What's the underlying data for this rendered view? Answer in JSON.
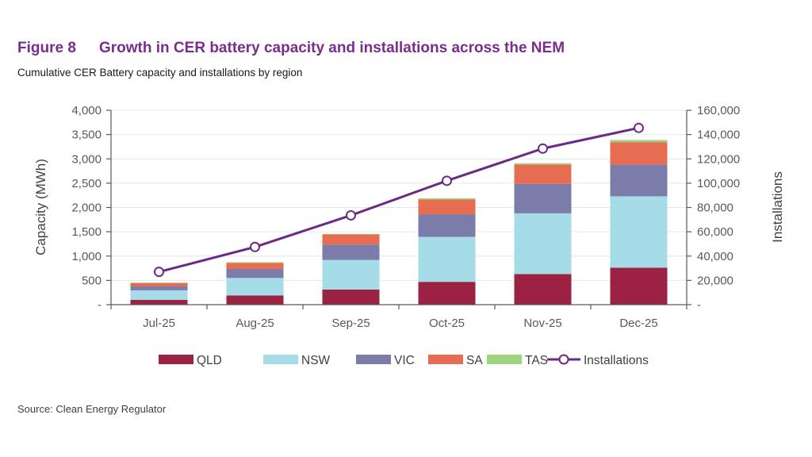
{
  "figure": {
    "number": "Figure 8",
    "title": "Growth in CER battery capacity and installations across the NEM",
    "subtitle": "Cumulative CER Battery capacity and installations by region",
    "source": "Source: Clean Energy Regulator"
  },
  "chart_data": {
    "type": "bar",
    "stacked": true,
    "title": "Growth in CER battery capacity and installations across the NEM",
    "subtitle": "Cumulative CER Battery capacity and installations by region",
    "categories": [
      "Jul-25",
      "Aug-25",
      "Sep-25",
      "Oct-25",
      "Nov-25",
      "Dec-25"
    ],
    "series": [
      {
        "name": "QLD",
        "axis": "left",
        "kind": "bar",
        "color": "#9b2242",
        "values": [
          100,
          190,
          310,
          470,
          630,
          760
        ]
      },
      {
        "name": "NSW",
        "axis": "left",
        "kind": "bar",
        "color": "#a6dbe8",
        "values": [
          195,
          360,
          610,
          925,
          1250,
          1470
        ]
      },
      {
        "name": "VIC",
        "axis": "left",
        "kind": "bar",
        "color": "#7b7caa",
        "values": [
          80,
          185,
          315,
          465,
          605,
          650
        ]
      },
      {
        "name": "SA",
        "axis": "left",
        "kind": "bar",
        "color": "#e66c52",
        "values": [
          70,
          125,
          210,
          305,
          400,
          465
        ]
      },
      {
        "name": "TAS",
        "axis": "left",
        "kind": "bar",
        "color": "#9fd47f",
        "values": [
          10,
          15,
          10,
          25,
          25,
          45
        ]
      },
      {
        "name": "Installations",
        "axis": "right",
        "kind": "line",
        "color": "#6b2a84",
        "values": [
          27000,
          47500,
          73500,
          102000,
          128500,
          145500
        ]
      }
    ],
    "ylabel": "Capacity (MWh)",
    "ylabel_right": "Installations",
    "xlabel": "",
    "ylim": [
      0,
      4000
    ],
    "ylim_right": [
      0,
      160000
    ],
    "yticks": [
      0,
      500,
      1000,
      1500,
      2000,
      2500,
      3000,
      3500,
      4000
    ],
    "yticks_labels": [
      "-",
      "500",
      "1,000",
      "1,500",
      "2,000",
      "2,500",
      "3,000",
      "3,500",
      "4,000"
    ],
    "yticks_right": [
      0,
      20000,
      40000,
      60000,
      80000,
      100000,
      120000,
      140000,
      160000
    ],
    "yticks_right_labels": [
      "-",
      "20,000",
      "40,000",
      "60,000",
      "80,000",
      "100,000",
      "120,000",
      "140,000",
      "160,000"
    ],
    "grid": true,
    "legend": "bottom"
  }
}
